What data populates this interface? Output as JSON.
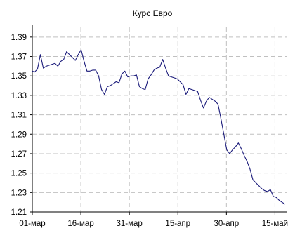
{
  "chart_data": {
    "type": "line",
    "title": "Курс Евро",
    "xlabel": "",
    "ylabel": "",
    "x_tick_labels": [
      "01-мар",
      "16-мар",
      "31-мар",
      "15-апр",
      "30-апр",
      "15-май"
    ],
    "y_tick_labels": [
      "1.21",
      "1.23",
      "1.25",
      "1.27",
      "1.29",
      "1.31",
      "1.33",
      "1.35",
      "1.37",
      "1.39"
    ],
    "x_ticks_day": [
      0,
      15,
      30,
      45,
      60,
      75
    ],
    "y_ticks": [
      1.21,
      1.23,
      1.25,
      1.27,
      1.29,
      1.31,
      1.33,
      1.35,
      1.37,
      1.39
    ],
    "xlim_day": [
      0,
      78.6
    ],
    "ylim": [
      1.21,
      1.4
    ],
    "grid": true,
    "colors": {
      "line": "#1a1a7a",
      "grid": "#c0c0c0",
      "axis": "#000000"
    },
    "series": [
      {
        "name": "",
        "x_day": [
          0,
          0.7,
          1.6,
          2.5,
          3.4,
          4.3,
          5.2,
          6.1,
          7.0,
          7.9,
          8.8,
          9.7,
          10.6,
          11.5,
          12.4,
          13.3,
          14.2,
          15.1,
          16.0,
          16.9,
          17.8,
          18.7,
          19.6,
          20.5,
          21.4,
          22.3,
          23.2,
          24.1,
          25.0,
          25.9,
          26.8,
          27.7,
          28.6,
          29.5,
          30.4,
          31.3,
          32.2,
          33.1,
          34.0,
          34.9,
          35.8,
          36.7,
          37.6,
          38.5,
          39.4,
          40.3,
          41.2,
          42.1,
          43.0,
          43.9,
          44.8,
          45.7,
          46.6,
          47.5,
          48.4,
          49.3,
          50.2,
          51.1,
          52.0,
          52.9,
          53.8,
          54.7,
          55.6,
          56.5,
          57.4,
          58.3,
          59.2,
          60.1,
          61.0,
          61.9,
          62.8,
          63.7,
          64.6,
          65.5,
          66.4,
          67.3,
          68.2,
          69.1,
          70.0,
          70.9,
          71.8,
          72.7,
          73.6,
          74.5,
          75.4,
          76.3,
          77.2,
          78.1
        ],
        "values": [
          1.355,
          1.354,
          1.357,
          1.372,
          1.358,
          1.36,
          1.361,
          1.362,
          1.363,
          1.36,
          1.365,
          1.367,
          1.375,
          1.372,
          1.369,
          1.366,
          1.372,
          1.377,
          1.365,
          1.355,
          1.355,
          1.356,
          1.356,
          1.35,
          1.336,
          1.331,
          1.339,
          1.34,
          1.342,
          1.344,
          1.343,
          1.352,
          1.355,
          1.349,
          1.35,
          1.35,
          1.351,
          1.339,
          1.337,
          1.336,
          1.347,
          1.351,
          1.356,
          1.358,
          1.359,
          1.367,
          1.358,
          1.35,
          1.349,
          1.348,
          1.347,
          1.344,
          1.341,
          1.331,
          1.337,
          1.336,
          1.335,
          1.334,
          1.325,
          1.317,
          1.324,
          1.328,
          1.326,
          1.324,
          1.321,
          1.306,
          1.29,
          1.274,
          1.27,
          1.274,
          1.277,
          1.281,
          1.275,
          1.268,
          1.262,
          1.254,
          1.243,
          1.24,
          1.237,
          1.234,
          1.232,
          1.231,
          1.233,
          1.226,
          1.225,
          1.222,
          1.22,
          1.218
        ]
      }
    ]
  }
}
